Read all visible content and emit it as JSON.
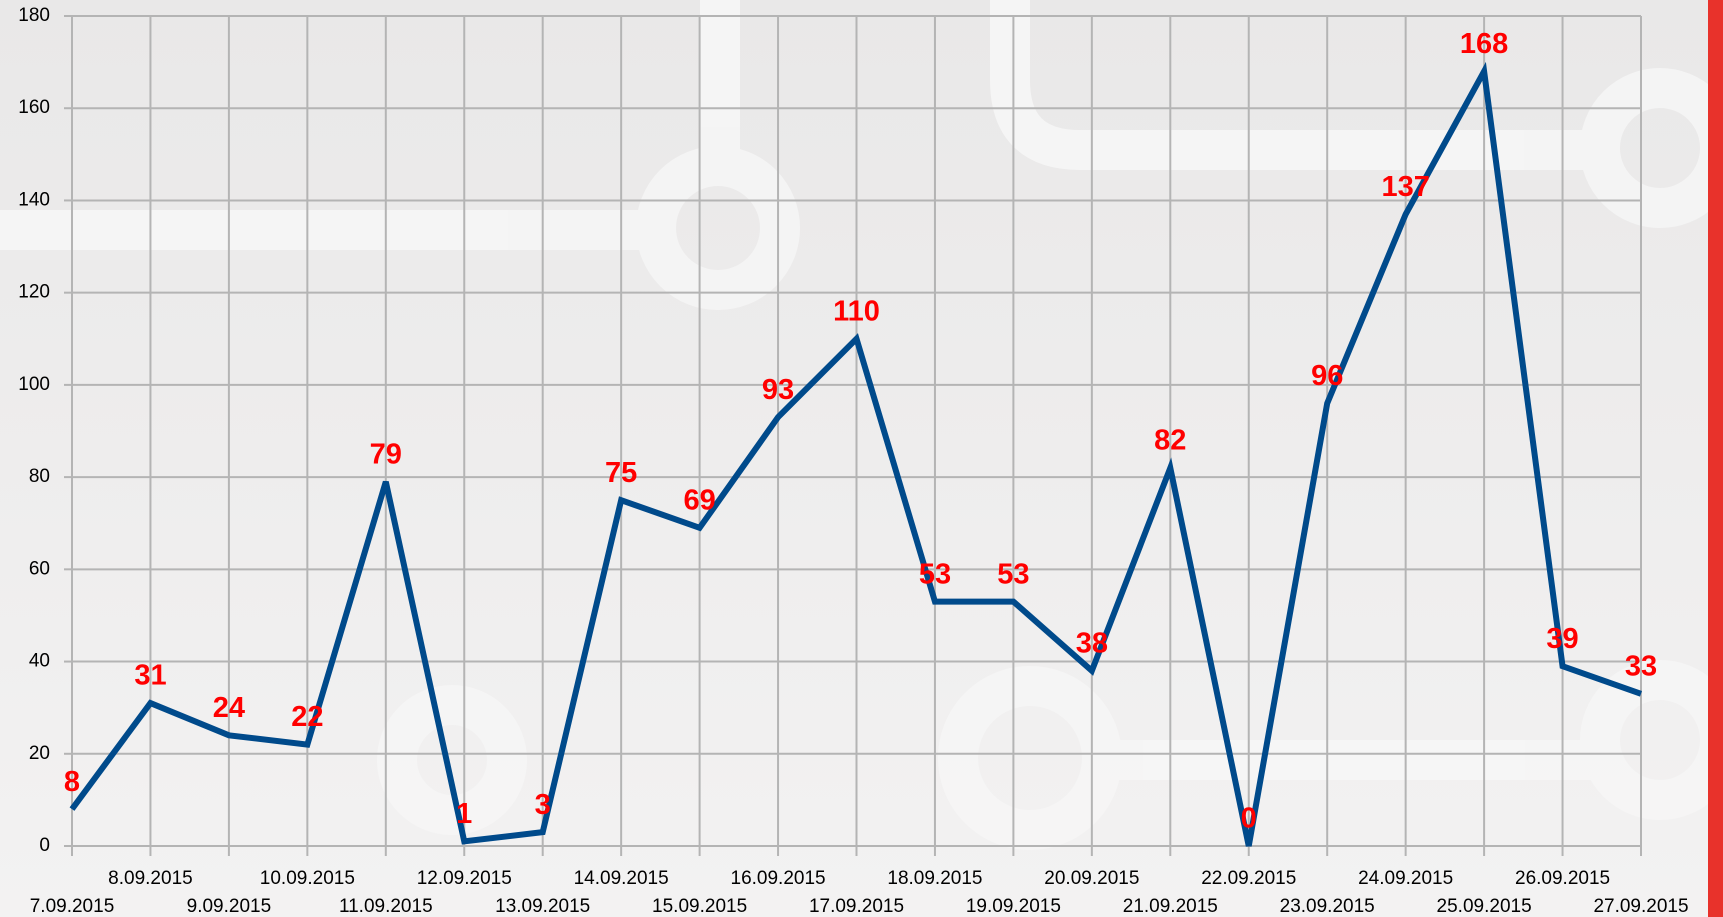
{
  "chart_data": {
    "type": "line",
    "categories": [
      "7.09.2015",
      "8.09.2015",
      "9.09.2015",
      "10.09.2015",
      "11.09.2015",
      "12.09.2015",
      "13.09.2015",
      "14.09.2015",
      "15.09.2015",
      "16.09.2015",
      "17.09.2015",
      "18.09.2015",
      "19.09.2015",
      "20.09.2015",
      "21.09.2015",
      "22.09.2015",
      "23.09.2015",
      "24.09.2015",
      "25.09.2015",
      "26.09.2015",
      "27.09.2015"
    ],
    "values": [
      8,
      31,
      24,
      22,
      79,
      1,
      3,
      75,
      69,
      93,
      110,
      53,
      53,
      38,
      82,
      0,
      96,
      137,
      168,
      39,
      33
    ],
    "color": "#004a8b",
    "label_color": "#ff0000",
    "ylim": [
      0,
      180
    ],
    "yticks": [
      0,
      20,
      40,
      60,
      80,
      100,
      120,
      140,
      160,
      180
    ],
    "grid": true
  }
}
